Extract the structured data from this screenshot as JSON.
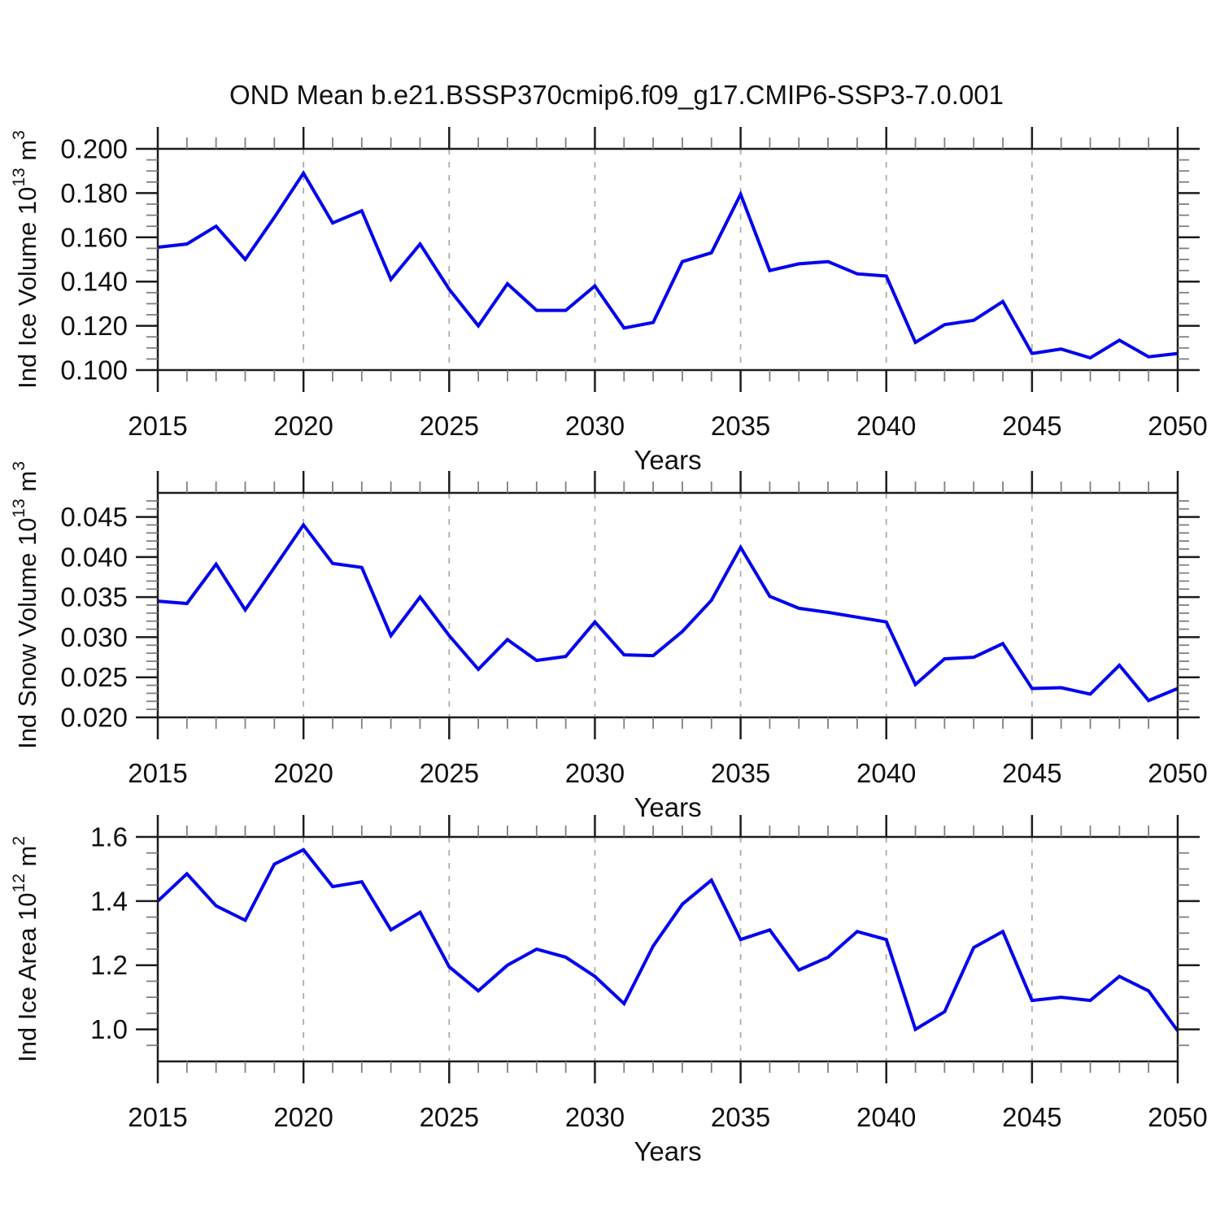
{
  "title": "OND Mean b.e21.BSSP370cmip6.f09_g17.CMIP6-SSP3-7.0.001",
  "colors": {
    "line": "#0000EE",
    "frame": "#1c1c1c",
    "minor_tick": "#7f7f7f",
    "gridline": "#ababab",
    "text": "#111111"
  },
  "chart_data": [
    {
      "type": "line",
      "title": "",
      "xlabel": "Years",
      "ylabel_plain": "Ind Ice Volume 10^13 m^3",
      "ylabel_segments": [
        {
          "t": "Ind Ice Volume 10"
        },
        {
          "t": "13",
          "sup": true
        },
        {
          "t": " m"
        },
        {
          "t": "3",
          "sup": true
        }
      ],
      "x": [
        2015,
        2016,
        2017,
        2018,
        2019,
        2020,
        2021,
        2022,
        2023,
        2024,
        2025,
        2026,
        2027,
        2028,
        2029,
        2030,
        2031,
        2032,
        2033,
        2034,
        2035,
        2036,
        2037,
        2038,
        2039,
        2040,
        2041,
        2042,
        2043,
        2044,
        2045,
        2046,
        2047,
        2048,
        2049,
        2050
      ],
      "values": [
        0.1555,
        0.157,
        0.165,
        0.15,
        0.169,
        0.189,
        0.1665,
        0.172,
        0.141,
        0.157,
        0.1365,
        0.12,
        0.139,
        0.127,
        0.127,
        0.138,
        0.119,
        0.1215,
        0.149,
        0.153,
        0.1795,
        0.145,
        0.148,
        0.149,
        0.1435,
        0.1425,
        0.1125,
        0.1205,
        0.1225,
        0.131,
        0.1075,
        0.1095,
        0.1055,
        0.1135,
        0.106,
        0.1075
      ],
      "xlim": [
        2015,
        2050
      ],
      "ylim": [
        0.1,
        0.2
      ],
      "xticks": [
        2015,
        2020,
        2025,
        2030,
        2035,
        2040,
        2045,
        2050
      ],
      "xtick_labels": [
        "2015",
        "2020",
        "2025",
        "2030",
        "2035",
        "2040",
        "2045",
        "2050"
      ],
      "xminor_step": 1,
      "yticks": [
        0.1,
        0.12,
        0.14,
        0.16,
        0.18,
        0.2
      ],
      "ytick_labels": [
        "0.100",
        "0.120",
        "0.140",
        "0.160",
        "0.180",
        "0.200"
      ],
      "yminor_step": 0.005,
      "grid_x": [
        2020,
        2025,
        2030,
        2035,
        2040,
        2045
      ],
      "grid_style": "vertical-dashed",
      "legend": "none"
    },
    {
      "type": "line",
      "title": "",
      "xlabel": "Years",
      "ylabel_plain": "Ind Snow Volume 10^13 m^3",
      "ylabel_segments": [
        {
          "t": "Ind Snow Volume 10"
        },
        {
          "t": "13",
          "sup": true
        },
        {
          "t": " m"
        },
        {
          "t": "3",
          "sup": true
        }
      ],
      "x": [
        2015,
        2016,
        2017,
        2018,
        2019,
        2020,
        2021,
        2022,
        2023,
        2024,
        2025,
        2026,
        2027,
        2028,
        2029,
        2030,
        2031,
        2032,
        2033,
        2034,
        2035,
        2036,
        2037,
        2038,
        2039,
        2040,
        2041,
        2042,
        2043,
        2044,
        2045,
        2046,
        2047,
        2048,
        2049,
        2050
      ],
      "values": [
        0.0345,
        0.0342,
        0.0391,
        0.0334,
        0.0387,
        0.044,
        0.0392,
        0.0387,
        0.0302,
        0.035,
        0.0302,
        0.026,
        0.0297,
        0.0271,
        0.0276,
        0.0319,
        0.0278,
        0.0277,
        0.0307,
        0.0346,
        0.0412,
        0.0351,
        0.0336,
        0.0331,
        0.0325,
        0.0319,
        0.0241,
        0.0273,
        0.0275,
        0.0292,
        0.0236,
        0.0237,
        0.0229,
        0.0265,
        0.0221,
        0.0236
      ],
      "xlim": [
        2015,
        2050
      ],
      "ylim": [
        0.02,
        0.048
      ],
      "xticks": [
        2015,
        2020,
        2025,
        2030,
        2035,
        2040,
        2045,
        2050
      ],
      "xtick_labels": [
        "2015",
        "2020",
        "2025",
        "2030",
        "2035",
        "2040",
        "2045",
        "2050"
      ],
      "xminor_step": 1,
      "yticks": [
        0.02,
        0.025,
        0.03,
        0.035,
        0.04,
        0.045
      ],
      "ytick_labels": [
        "0.020",
        "0.025",
        "0.030",
        "0.035",
        "0.040",
        "0.045"
      ],
      "yminor_step": 0.001,
      "grid_x": [
        2020,
        2025,
        2030,
        2035,
        2040,
        2045
      ],
      "grid_style": "vertical-dashed",
      "legend": "none"
    },
    {
      "type": "line",
      "title": "",
      "xlabel": "Years",
      "ylabel_plain": "Ind Ice Area 10^12 m^2",
      "ylabel_segments": [
        {
          "t": "Ind Ice Area 10"
        },
        {
          "t": "12",
          "sup": true
        },
        {
          "t": " m"
        },
        {
          "t": "2",
          "sup": true
        }
      ],
      "x": [
        2015,
        2016,
        2017,
        2018,
        2019,
        2020,
        2021,
        2022,
        2023,
        2024,
        2025,
        2026,
        2027,
        2028,
        2029,
        2030,
        2031,
        2032,
        2033,
        2034,
        2035,
        2036,
        2037,
        2038,
        2039,
        2040,
        2041,
        2042,
        2043,
        2044,
        2045,
        2046,
        2047,
        2048,
        2049,
        2050
      ],
      "values": [
        1.4,
        1.485,
        1.385,
        1.34,
        1.515,
        1.56,
        1.445,
        1.46,
        1.31,
        1.365,
        1.195,
        1.12,
        1.2,
        1.25,
        1.225,
        1.165,
        1.08,
        1.26,
        1.39,
        1.465,
        1.28,
        1.31,
        1.185,
        1.225,
        1.305,
        1.28,
        1.0,
        1.055,
        1.255,
        1.305,
        1.09,
        1.1,
        1.09,
        1.165,
        1.12,
        0.995
      ],
      "xlim": [
        2015,
        2050
      ],
      "ylim": [
        0.9,
        1.6
      ],
      "xticks": [
        2015,
        2020,
        2025,
        2030,
        2035,
        2040,
        2045,
        2050
      ],
      "xtick_labels": [
        "2015",
        "2020",
        "2025",
        "2030",
        "2035",
        "2040",
        "2045",
        "2050"
      ],
      "xminor_step": 1,
      "yticks": [
        1.0,
        1.2,
        1.4,
        1.6
      ],
      "ytick_labels": [
        "1.0",
        "1.2",
        "1.4",
        "1.6"
      ],
      "yminor_step": 0.05,
      "grid_x": [
        2020,
        2025,
        2030,
        2035,
        2040,
        2045
      ],
      "grid_style": "vertical-dashed",
      "legend": "none"
    }
  ]
}
